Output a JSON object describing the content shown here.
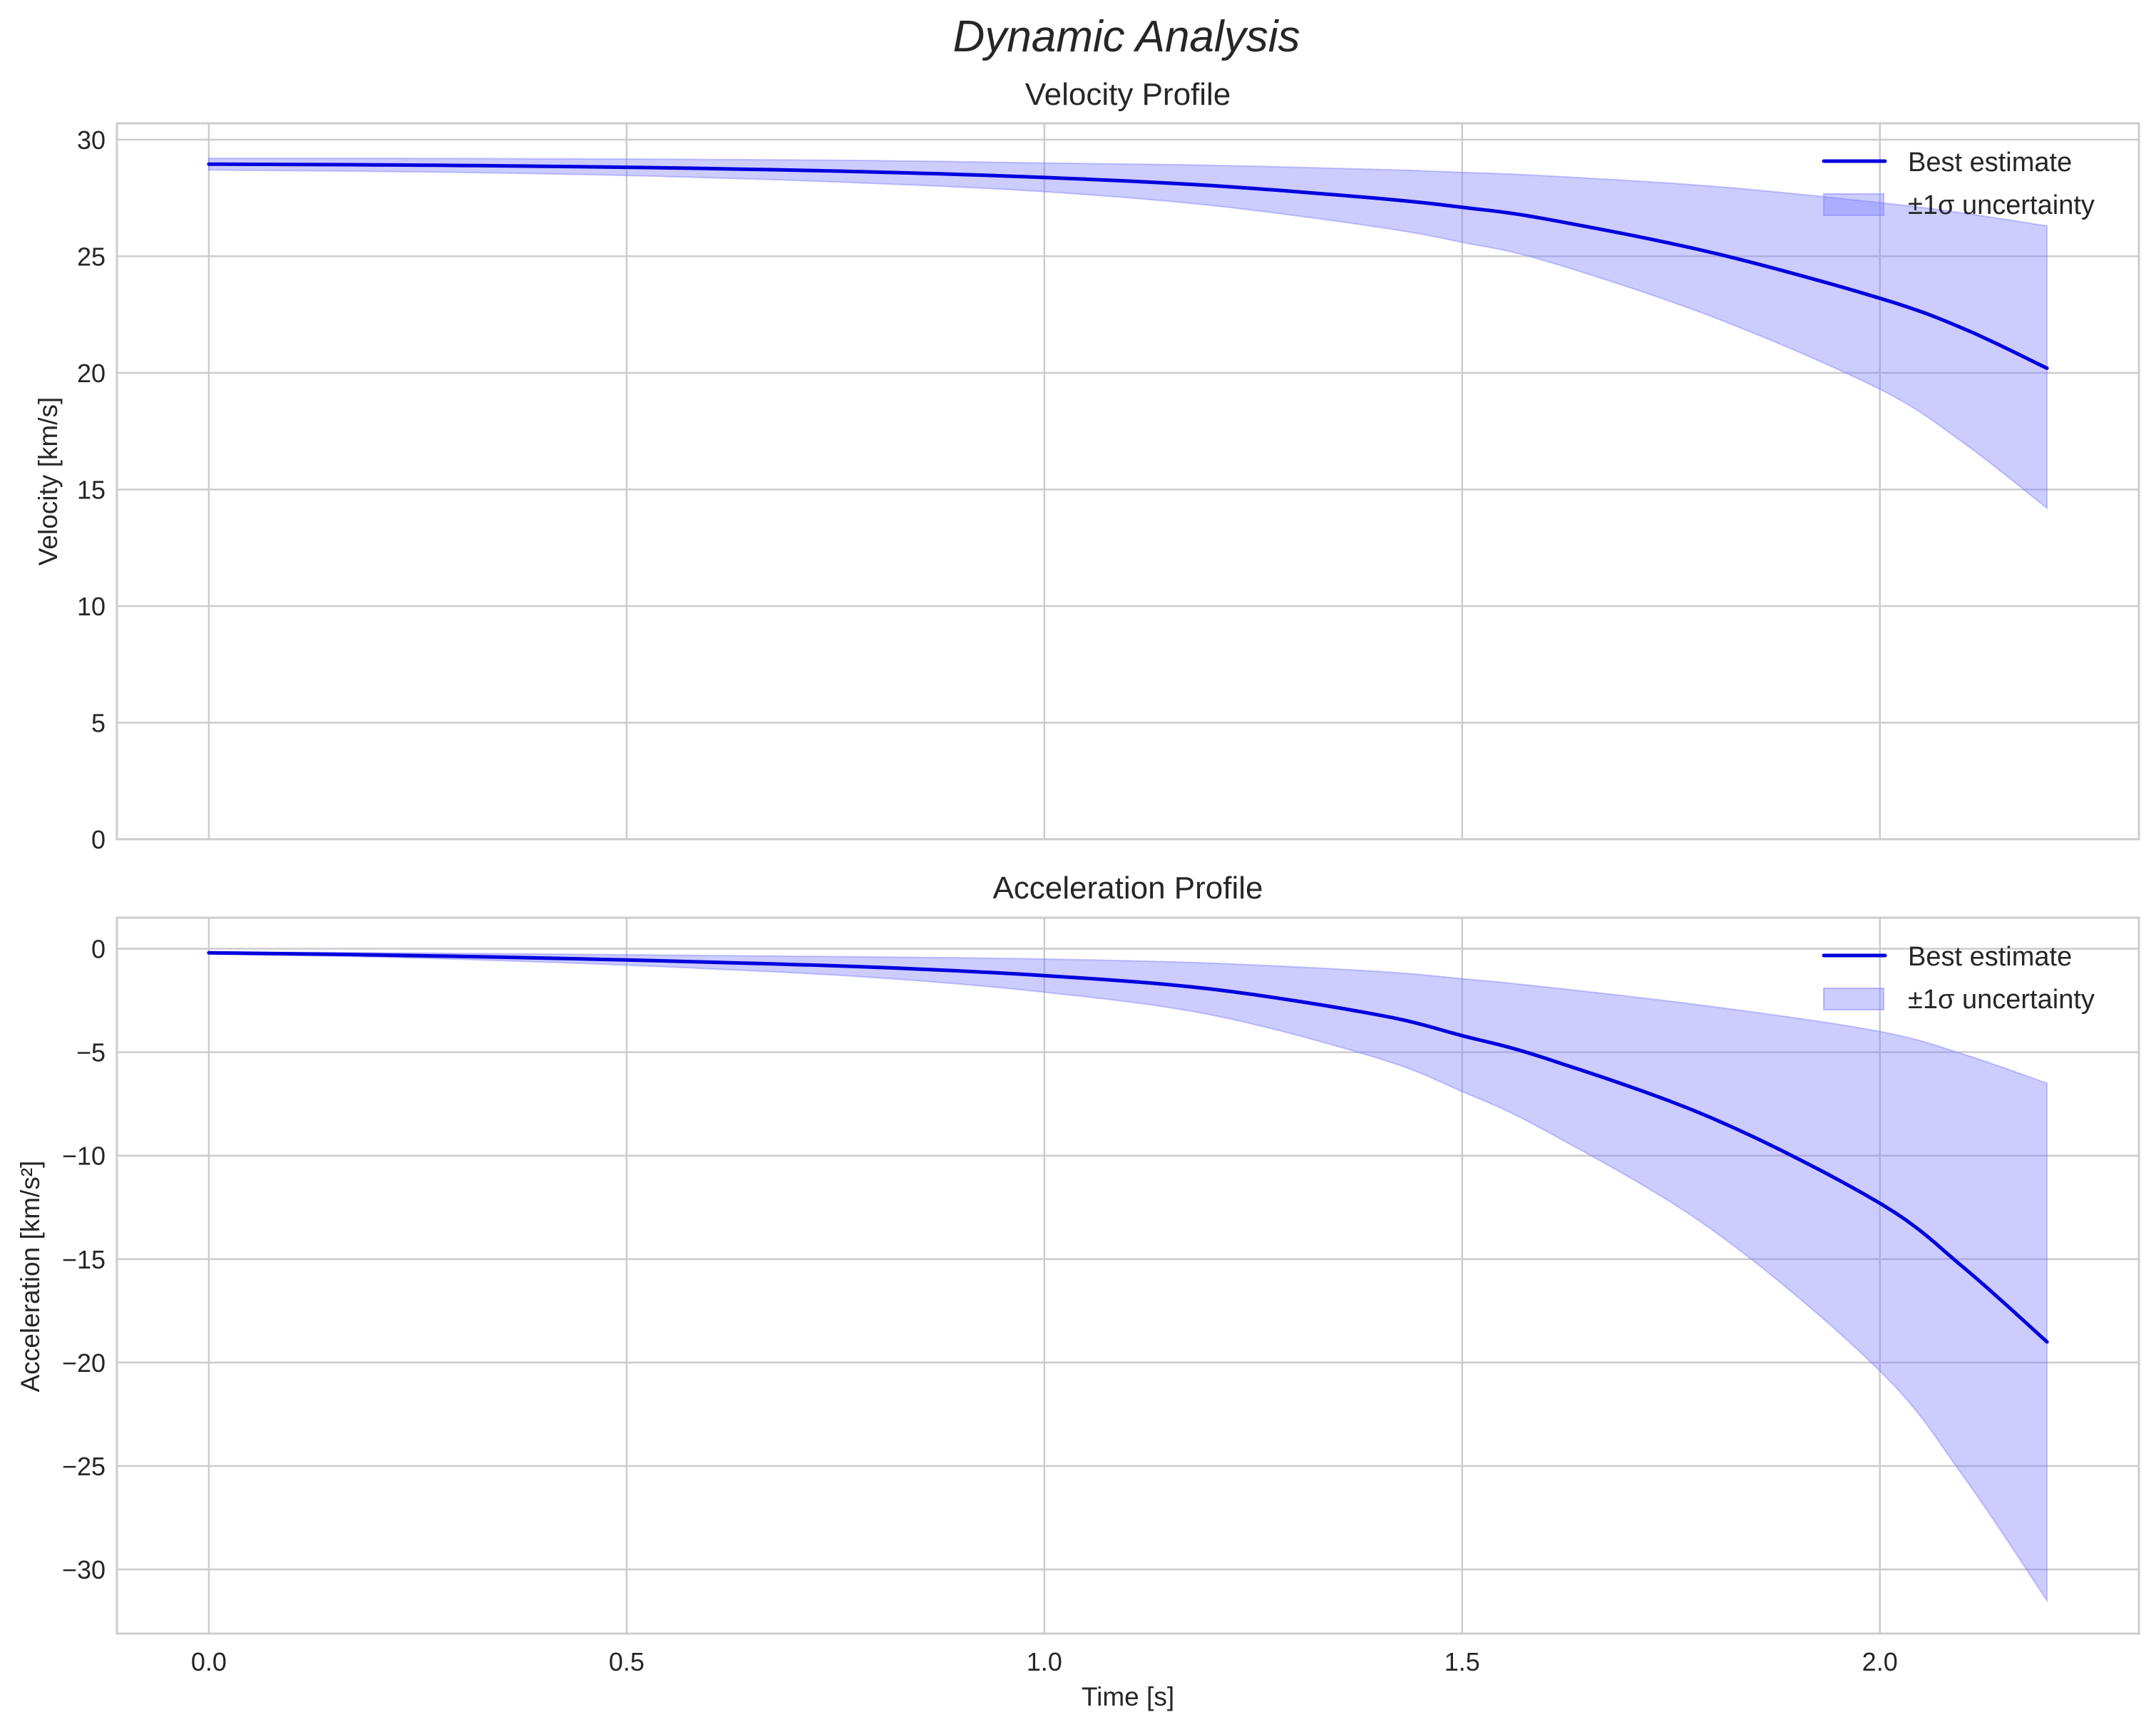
{
  "figure": {
    "title": "Dynamic Analysis",
    "colors": {
      "line": "#0000dd",
      "band_fill": "#8080ff",
      "band_fill_opacity": 0.4,
      "grid": "#cccccc",
      "spine": "#cccccc",
      "text": "#262626",
      "background": "#ffffff"
    }
  },
  "chart_data": [
    {
      "type": "line",
      "title": "Velocity Profile",
      "xlabel": "",
      "ylabel": "Velocity [km/s]",
      "xlim": [
        -0.11,
        2.31
      ],
      "ylim": [
        0,
        30.7
      ],
      "xticks": [
        0.0,
        0.5,
        1.0,
        1.5,
        2.0
      ],
      "xtick_labels": [
        "0.0",
        "0.5",
        "1.0",
        "1.5",
        "2.0"
      ],
      "show_xtick_labels": false,
      "yticks": [
        0,
        5,
        10,
        15,
        20,
        25,
        30
      ],
      "ytick_labels": [
        "0",
        "5",
        "10",
        "15",
        "20",
        "25",
        "30"
      ],
      "grid": true,
      "legend_position": "upper right",
      "legend": [
        "Best estimate",
        "±1σ uncertainty"
      ],
      "x": [
        0.0,
        0.2,
        0.4,
        0.6,
        0.8,
        1.0,
        1.2,
        1.4,
        1.5,
        1.6,
        1.8,
        2.0,
        2.1,
        2.2
      ],
      "series": [
        {
          "name": "Best estimate",
          "kind": "line",
          "values": [
            28.95,
            28.92,
            28.86,
            28.76,
            28.61,
            28.38,
            28.03,
            27.48,
            27.1,
            26.6,
            25.15,
            23.2,
            21.9,
            20.2
          ]
        },
        {
          "name": "±1σ uncertainty",
          "kind": "band",
          "upper": [
            29.2,
            29.2,
            29.18,
            29.15,
            29.1,
            29.0,
            28.9,
            28.72,
            28.6,
            28.45,
            28.0,
            27.3,
            26.85,
            26.3
          ],
          "lower": [
            28.7,
            28.64,
            28.54,
            28.37,
            28.12,
            27.77,
            27.18,
            26.25,
            25.6,
            24.8,
            22.4,
            19.3,
            17.0,
            14.2
          ]
        }
      ]
    },
    {
      "type": "line",
      "title": "Acceleration Profile",
      "xlabel": "Time [s]",
      "ylabel": "Acceleration [km/s²]",
      "xlim": [
        -0.11,
        2.31
      ],
      "ylim": [
        -33.1,
        1.5
      ],
      "xticks": [
        0.0,
        0.5,
        1.0,
        1.5,
        2.0
      ],
      "xtick_labels": [
        "0.0",
        "0.5",
        "1.0",
        "1.5",
        "2.0"
      ],
      "show_xtick_labels": true,
      "yticks": [
        0,
        -5,
        -10,
        -15,
        -20,
        -25,
        -30
      ],
      "ytick_labels": [
        "0",
        "−5",
        "−10",
        "−15",
        "−20",
        "−25",
        "−30"
      ],
      "grid": true,
      "legend_position": "upper right",
      "legend": [
        "Best estimate",
        "±1σ uncertainty"
      ],
      "x": [
        0.0,
        0.2,
        0.4,
        0.6,
        0.8,
        1.0,
        1.2,
        1.4,
        1.5,
        1.6,
        1.8,
        2.0,
        2.1,
        2.2
      ],
      "series": [
        {
          "name": "Best estimate",
          "kind": "line",
          "values": [
            -0.2,
            -0.3,
            -0.45,
            -0.65,
            -0.9,
            -1.3,
            -1.95,
            -3.2,
            -4.2,
            -5.3,
            -8.2,
            -12.3,
            -15.4,
            -19.0
          ]
        },
        {
          "name": "±1σ uncertainty",
          "kind": "band",
          "upper": [
            -0.15,
            -0.2,
            -0.26,
            -0.33,
            -0.4,
            -0.5,
            -0.7,
            -1.1,
            -1.45,
            -1.85,
            -2.8,
            -4.0,
            -5.1,
            -6.5
          ],
          "lower": [
            -0.25,
            -0.4,
            -0.64,
            -0.97,
            -1.4,
            -2.1,
            -3.2,
            -5.3,
            -6.9,
            -8.8,
            -13.6,
            -20.4,
            -25.5,
            -31.5
          ]
        }
      ]
    }
  ]
}
